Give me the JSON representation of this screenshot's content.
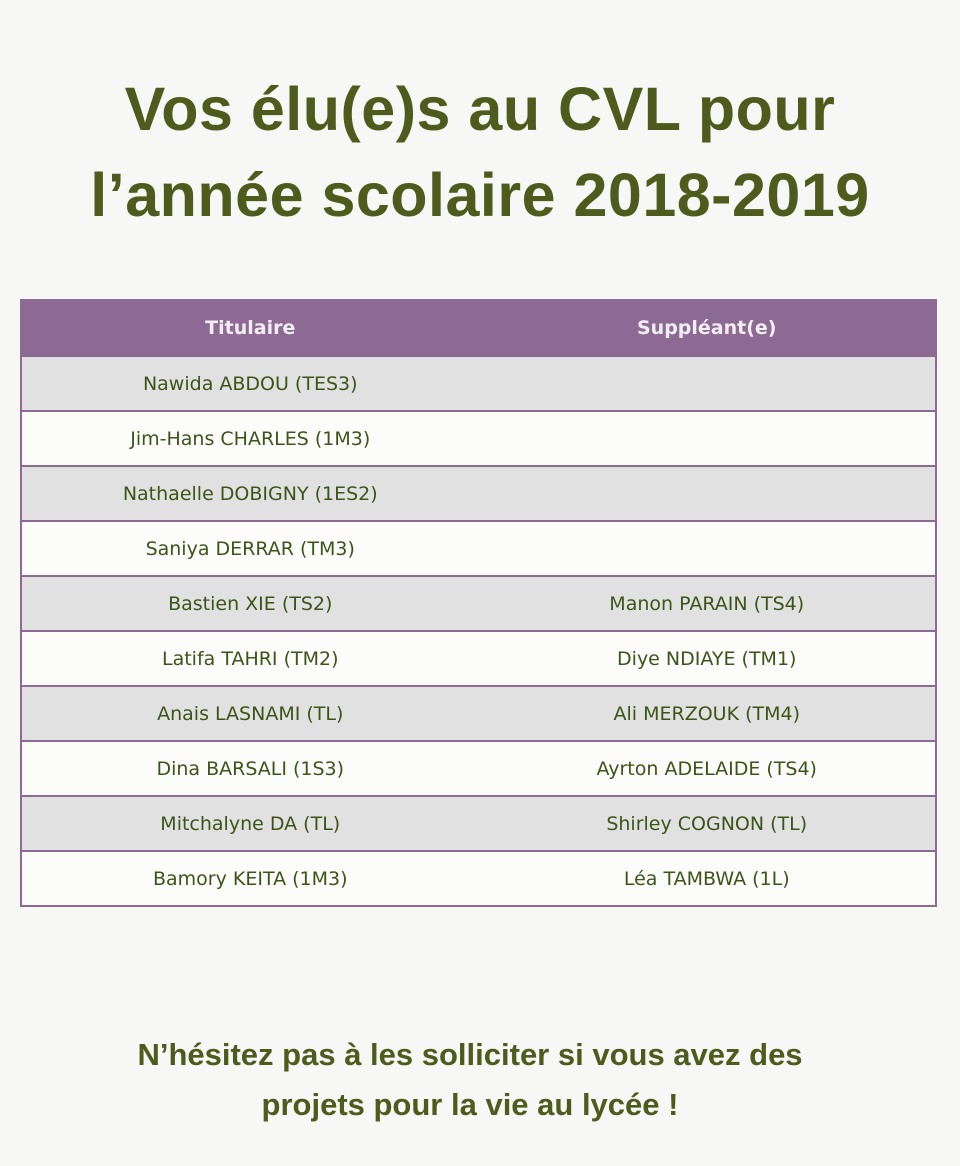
{
  "title": {
    "line1": "Vos élu(e)s au CVL pour",
    "line2": "l’année scolaire 2018-2019"
  },
  "table": {
    "headers": [
      "Titulaire",
      "Suppléant(e)"
    ],
    "rows": [
      [
        "Nawida ABDOU (TES3)",
        ""
      ],
      [
        "Jim-Hans CHARLES (1M3)",
        ""
      ],
      [
        "Nathaelle DOBIGNY (1ES2)",
        ""
      ],
      [
        "Saniya DERRAR (TM3)",
        ""
      ],
      [
        "Bastien XIE (TS2)",
        "Manon PARAIN (TS4)"
      ],
      [
        "Latifa TAHRI (TM2)",
        "Diye NDIAYE (TM1)"
      ],
      [
        "Anais LASNAMI (TL)",
        "Ali MERZOUK (TM4)"
      ],
      [
        "Dina BARSALI (1S3)",
        "Ayrton ADELAIDE (TS4)"
      ],
      [
        "Mitchalyne DA (TL)",
        "Shirley COGNON (TL)"
      ],
      [
        "Bamory KEITA (1M3)",
        "Léa TAMBWA (1L)"
      ]
    ]
  },
  "footer": {
    "line1": "N’hésitez pas à les solliciter si vous avez des",
    "line2": "projets pour la vie au lycée !"
  },
  "colors": {
    "title": "#4f5a1d",
    "header_bg": "#8c6a94",
    "cell_text": "#3d5418",
    "alt_row": "#e2e1e1"
  }
}
